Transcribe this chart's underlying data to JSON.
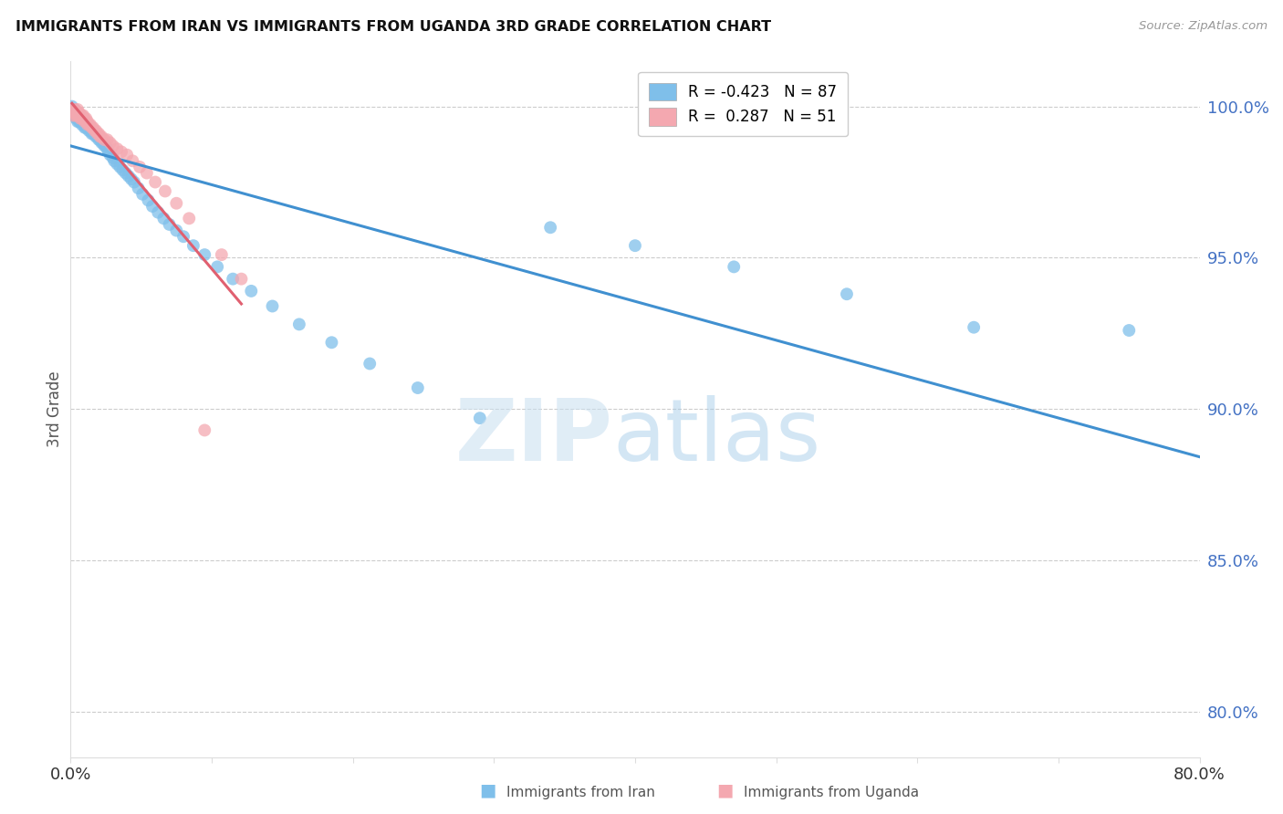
{
  "title": "IMMIGRANTS FROM IRAN VS IMMIGRANTS FROM UGANDA 3RD GRADE CORRELATION CHART",
  "source": "Source: ZipAtlas.com",
  "ylabel": "3rd Grade",
  "ytick_labels": [
    "100.0%",
    "95.0%",
    "90.0%",
    "85.0%",
    "80.0%"
  ],
  "ytick_values": [
    1.0,
    0.95,
    0.9,
    0.85,
    0.8
  ],
  "xlim": [
    0.0,
    0.8
  ],
  "ylim": [
    0.785,
    1.015
  ],
  "iran_color": "#7fbfea",
  "uganda_color": "#f4a8b0",
  "iran_line_color": "#4090d0",
  "uganda_line_color": "#e06070",
  "iran_R": "-0.423",
  "iran_N": "87",
  "uganda_R": "0.287",
  "uganda_N": "51",
  "iran_scatter_x": [
    0.001,
    0.002,
    0.002,
    0.003,
    0.003,
    0.003,
    0.004,
    0.004,
    0.004,
    0.005,
    0.005,
    0.005,
    0.005,
    0.006,
    0.006,
    0.006,
    0.007,
    0.007,
    0.007,
    0.008,
    0.008,
    0.008,
    0.009,
    0.009,
    0.01,
    0.01,
    0.01,
    0.011,
    0.011,
    0.012,
    0.012,
    0.013,
    0.013,
    0.014,
    0.014,
    0.015,
    0.015,
    0.016,
    0.016,
    0.017,
    0.018,
    0.019,
    0.02,
    0.02,
    0.021,
    0.022,
    0.023,
    0.024,
    0.025,
    0.026,
    0.027,
    0.028,
    0.03,
    0.031,
    0.033,
    0.035,
    0.037,
    0.039,
    0.041,
    0.043,
    0.045,
    0.048,
    0.051,
    0.055,
    0.058,
    0.062,
    0.066,
    0.07,
    0.075,
    0.08,
    0.087,
    0.095,
    0.104,
    0.115,
    0.128,
    0.143,
    0.162,
    0.185,
    0.212,
    0.246,
    0.29,
    0.34,
    0.4,
    0.47,
    0.55,
    0.64,
    0.75
  ],
  "iran_scatter_y": [
    1.0,
    0.999,
    0.998,
    0.999,
    0.998,
    0.997,
    0.998,
    0.997,
    0.996,
    0.998,
    0.997,
    0.996,
    0.995,
    0.997,
    0.996,
    0.995,
    0.997,
    0.996,
    0.995,
    0.996,
    0.995,
    0.994,
    0.996,
    0.995,
    0.995,
    0.994,
    0.993,
    0.994,
    0.993,
    0.994,
    0.993,
    0.993,
    0.992,
    0.993,
    0.992,
    0.992,
    0.991,
    0.992,
    0.991,
    0.991,
    0.99,
    0.99,
    0.99,
    0.989,
    0.989,
    0.988,
    0.988,
    0.987,
    0.987,
    0.986,
    0.985,
    0.984,
    0.983,
    0.982,
    0.981,
    0.98,
    0.979,
    0.978,
    0.977,
    0.976,
    0.975,
    0.973,
    0.971,
    0.969,
    0.967,
    0.965,
    0.963,
    0.961,
    0.959,
    0.957,
    0.954,
    0.951,
    0.947,
    0.943,
    0.939,
    0.934,
    0.928,
    0.922,
    0.915,
    0.907,
    0.897,
    0.96,
    0.954,
    0.947,
    0.938,
    0.927,
    0.926
  ],
  "uganda_scatter_x": [
    0.001,
    0.002,
    0.002,
    0.003,
    0.003,
    0.004,
    0.004,
    0.005,
    0.005,
    0.005,
    0.006,
    0.006,
    0.007,
    0.007,
    0.008,
    0.008,
    0.009,
    0.009,
    0.01,
    0.01,
    0.011,
    0.011,
    0.012,
    0.012,
    0.013,
    0.014,
    0.015,
    0.016,
    0.017,
    0.018,
    0.019,
    0.02,
    0.021,
    0.022,
    0.024,
    0.026,
    0.028,
    0.03,
    0.033,
    0.036,
    0.04,
    0.044,
    0.049,
    0.054,
    0.06,
    0.067,
    0.075,
    0.084,
    0.095,
    0.107,
    0.121
  ],
  "uganda_scatter_y": [
    0.999,
    0.998,
    0.997,
    0.999,
    0.998,
    0.998,
    0.997,
    0.999,
    0.998,
    0.997,
    0.998,
    0.997,
    0.997,
    0.996,
    0.997,
    0.996,
    0.997,
    0.996,
    0.996,
    0.995,
    0.996,
    0.995,
    0.995,
    0.994,
    0.994,
    0.994,
    0.993,
    0.993,
    0.992,
    0.992,
    0.991,
    0.991,
    0.99,
    0.99,
    0.989,
    0.989,
    0.988,
    0.987,
    0.986,
    0.985,
    0.984,
    0.982,
    0.98,
    0.978,
    0.975,
    0.972,
    0.968,
    0.963,
    0.893,
    0.951,
    0.943
  ]
}
